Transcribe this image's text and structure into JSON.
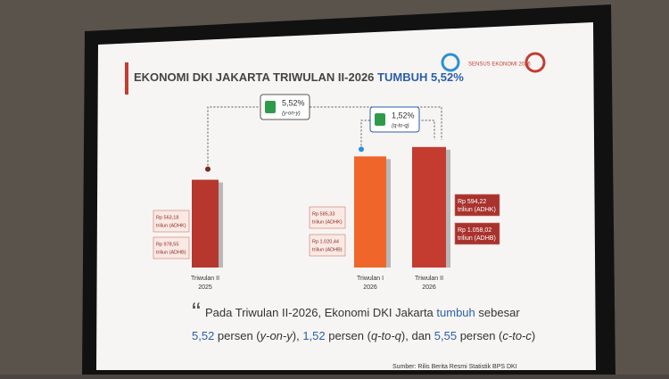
{
  "slide": {
    "title": "EKONOMI DKI JAKARTA TRIWULAN II-2026",
    "title_highlight": "TUMBUH 5,52%",
    "logo_text": "SENSUS EKONOMI 2026",
    "quote": [
      "Pada Triwulan II-2026, Ekonomi DKI Jakarta ",
      "tumbuh",
      " sebesar"
    ],
    "quote_line2": [
      "5,52",
      " persen (",
      "y-on-y",
      "), ",
      "1,52",
      " persen (",
      "q-to-q",
      "), dan ",
      "5,55",
      " persen (",
      "c-to-c",
      ")"
    ],
    "source": "Sumber: Rilis Berita Resmi Statistik BPS DKI"
  },
  "chart_data": {
    "type": "bar",
    "categories": [
      "Triwulan II",
      "Triwulan I",
      "Triwulan II"
    ],
    "years": [
      "2025",
      "2026",
      "2026"
    ],
    "values": [
      563.18,
      585.33,
      594.22
    ],
    "value_labels": [
      "Rp 563,18",
      "Rp 585,33",
      "Rp 594,22"
    ],
    "adhk_unit": "triliun (ADHK)",
    "adhb_labels": [
      "Rp 978,55",
      "Rp 1.020,44",
      "Rp 1.058,02"
    ],
    "adhb_unit": "triliun (ADHB)",
    "colors": [
      "#b5372d",
      "#f0662a",
      "#c43c2f"
    ],
    "ylim": [
      480,
      600
    ],
    "growth": [
      {
        "value": "5,52%",
        "basis": "(y-on-y)"
      },
      {
        "value": "1,52%",
        "basis": "(q-to-q)"
      }
    ]
  }
}
